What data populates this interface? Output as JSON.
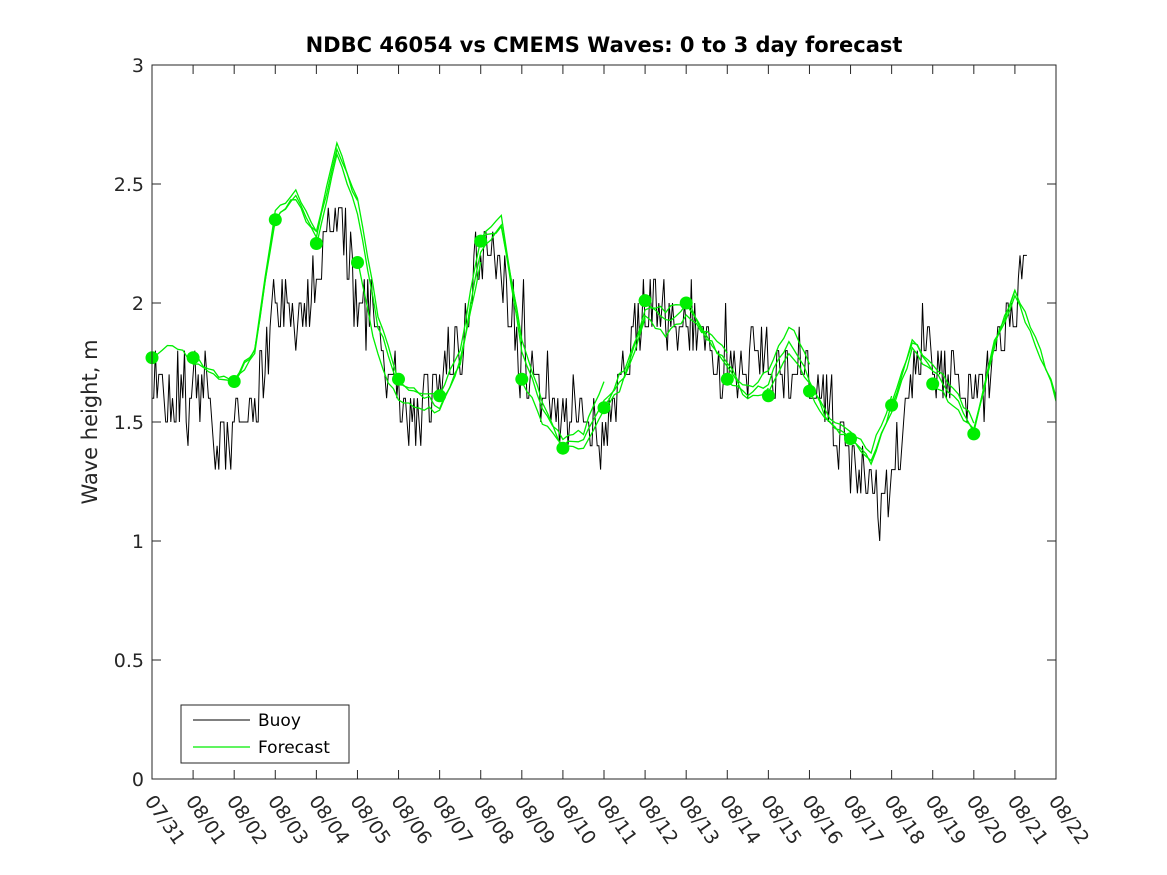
{
  "chart_data": {
    "type": "line",
    "title": "NDBC 46054 vs CMEMS Waves: 0 to 3 day forecast",
    "xlabel": "",
    "ylabel": "Wave height, m",
    "xlim": [
      0,
      22
    ],
    "ylim": [
      0,
      3
    ],
    "x_tick_labels": [
      "07/31",
      "08/01",
      "08/02",
      "08/03",
      "08/04",
      "08/05",
      "08/06",
      "08/07",
      "08/08",
      "08/09",
      "08/10",
      "08/11",
      "08/12",
      "08/13",
      "08/14",
      "08/15",
      "08/16",
      "08/17",
      "08/18",
      "08/19",
      "08/20",
      "08/21",
      "08/22"
    ],
    "y_ticks": [
      0,
      0.5,
      1,
      1.5,
      2,
      2.5,
      3
    ],
    "y_tick_labels": [
      "0",
      "0.5",
      "1",
      "1.5",
      "2",
      "2.5",
      "3"
    ],
    "legend": {
      "placement": "bottom-left",
      "entries": [
        "Buoy",
        "Forecast"
      ]
    },
    "colors": {
      "buoy": "#000000",
      "forecast": "#00ee00",
      "marker": "#00ee00",
      "axis": "#262626"
    },
    "buoy_key": {
      "x": [
        0,
        0.25,
        0.5,
        0.75,
        1,
        1.25,
        1.5,
        1.75,
        2,
        2.25,
        2.5,
        2.75,
        3,
        3.25,
        3.5,
        3.75,
        4,
        4.25,
        4.5,
        4.75,
        5,
        5.25,
        5.5,
        5.75,
        6,
        6.25,
        6.5,
        6.75,
        7,
        7.25,
        7.5,
        7.75,
        8,
        8.25,
        8.5,
        8.75,
        9,
        9.25,
        9.5,
        9.75,
        10,
        10.25,
        10.5,
        10.75,
        11,
        11.25,
        11.5,
        11.75,
        12,
        12.25,
        12.5,
        12.75,
        13,
        13.25,
        13.5,
        13.75,
        14,
        14.25,
        14.5,
        14.75,
        15,
        15.25,
        15.5,
        15.75,
        16,
        16.25,
        16.5,
        16.75,
        17,
        17.25,
        17.5,
        17.75,
        18,
        18.25,
        18.5,
        18.75,
        19,
        19.25,
        19.5,
        19.75,
        20,
        20.25,
        20.5,
        20.75,
        21,
        21.25
      ],
      "y": [
        1.7,
        1.6,
        1.55,
        1.6,
        1.65,
        1.55,
        1.5,
        1.4,
        1.45,
        1.6,
        1.55,
        1.7,
        2.0,
        2.05,
        1.85,
        1.9,
        2.1,
        2.25,
        2.4,
        2.25,
        1.95,
        2.05,
        1.8,
        1.7,
        1.55,
        1.5,
        1.55,
        1.6,
        1.65,
        1.75,
        1.8,
        2.05,
        2.2,
        2.3,
        2.15,
        1.95,
        1.75,
        1.65,
        1.6,
        1.5,
        1.45,
        1.55,
        1.6,
        1.4,
        1.45,
        1.55,
        1.7,
        1.9,
        2.0,
        2.05,
        1.95,
        1.85,
        1.95,
        1.9,
        1.8,
        1.75,
        1.7,
        1.75,
        1.7,
        1.85,
        1.75,
        1.7,
        1.65,
        1.8,
        1.7,
        1.6,
        1.5,
        1.4,
        1.3,
        1.25,
        1.2,
        1.15,
        1.2,
        1.45,
        1.7,
        1.85,
        1.75,
        1.7,
        1.75,
        1.65,
        1.55,
        1.6,
        1.75,
        1.9,
        2.0,
        2.1
      ]
    },
    "forecast_init_points": {
      "x": [
        0,
        1,
        2,
        3,
        4,
        5,
        6,
        7,
        8,
        9,
        10,
        11,
        12,
        13,
        14,
        15,
        16,
        17,
        18,
        19,
        20
      ],
      "y": [
        1.77,
        1.77,
        1.67,
        2.35,
        2.25,
        2.17,
        1.68,
        1.61,
        2.26,
        1.68,
        1.39,
        1.56,
        2.01,
        2.0,
        1.68,
        1.61,
        1.63,
        1.43,
        1.57,
        1.66,
        1.45
      ]
    },
    "forecast_anchor_curve": {
      "x": [
        0,
        0.5,
        1,
        1.5,
        2,
        2.5,
        3,
        3.5,
        4,
        4.5,
        5,
        5.5,
        6,
        6.5,
        7,
        7.5,
        8,
        8.5,
        9,
        9.5,
        10,
        10.5,
        11,
        11.5,
        12,
        12.5,
        13,
        13.5,
        14,
        14.5,
        15,
        15.5,
        16,
        16.5,
        17,
        17.5,
        18,
        18.5,
        19,
        19.5,
        20,
        20.5,
        21,
        21.5,
        22
      ],
      "y": [
        1.77,
        1.82,
        1.75,
        1.7,
        1.67,
        1.8,
        2.35,
        2.45,
        2.3,
        2.65,
        2.4,
        1.95,
        1.7,
        1.62,
        1.57,
        1.8,
        2.25,
        2.3,
        1.8,
        1.6,
        1.45,
        1.42,
        1.6,
        1.75,
        2.0,
        1.92,
        1.95,
        1.82,
        1.75,
        1.65,
        1.68,
        1.85,
        1.72,
        1.55,
        1.45,
        1.35,
        1.6,
        1.85,
        1.72,
        1.62,
        1.5,
        1.85,
        2.05,
        1.85,
        1.63
      ]
    }
  }
}
